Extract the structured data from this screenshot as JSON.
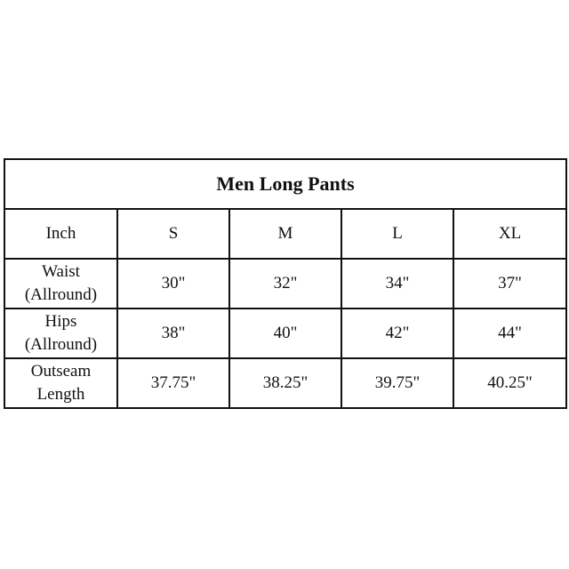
{
  "title": "Men Long Pants",
  "header": [
    "Inch",
    "S",
    "M",
    "L",
    "XL"
  ],
  "rows": [
    {
      "label_line1": "Waist",
      "label_line2": "(Allround)",
      "values": [
        "30\"",
        "32\"",
        "34\"",
        "37\""
      ]
    },
    {
      "label_line1": "Hips",
      "label_line2": "(Allround)",
      "values": [
        "38\"",
        "40\"",
        "42\"",
        "44\""
      ]
    },
    {
      "label_line1": "Outseam",
      "label_line2": "Length",
      "values": [
        "37.75\"",
        "38.25\"",
        "39.75\"",
        "40.25\""
      ]
    }
  ]
}
